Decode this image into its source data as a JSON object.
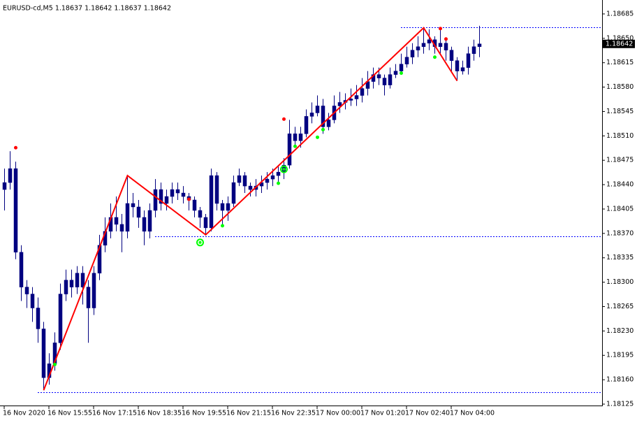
{
  "chart_data": {
    "type": "candlestick",
    "title": "EURUSD-cd,M5  1.18637 1.18642 1.18637 1.18642",
    "color": "#000080",
    "ylim": [
      1.18123,
      1.18705
    ],
    "yticks": [
      1.18125,
      {
        "value": 1.1816,
        "label": "1.18160"
      },
      1.18195,
      {
        "value": 1.1823,
        "label": "1.18230"
      },
      1.18265,
      {
        "value": 1.183,
        "label": "1.18300"
      },
      1.18335,
      {
        "value": 1.1837,
        "label": "1.18370"
      },
      1.18405,
      {
        "value": 1.1844,
        "label": "1.18440"
      },
      1.18475,
      {
        "value": 1.1851,
        "label": "1.18510"
      },
      1.18545,
      {
        "value": 1.1858,
        "label": "1.18580"
      },
      1.18615,
      {
        "value": 1.1865,
        "label": "1.18650"
      },
      1.18685
    ],
    "xticks": [
      {
        "value": 0,
        "label": "16 Nov 2020"
      },
      {
        "value": 8,
        "label": "16 Nov 15:55"
      },
      {
        "value": 16,
        "label": "16 Nov 17:15"
      },
      {
        "value": 24,
        "label": "16 Nov 18:35"
      },
      {
        "value": 32,
        "label": "16 Nov 19:55"
      },
      {
        "value": 40,
        "label": "16 Nov 21:15"
      },
      {
        "value": 48,
        "label": "16 Nov 22:35"
      },
      {
        "value": 56,
        "label": "17 Nov 00:00"
      },
      {
        "value": 64,
        "label": "17 Nov 01:20"
      },
      {
        "value": 72,
        "label": "17 Nov 02:40"
      },
      {
        "value": 80,
        "label": "17 Nov 04:00"
      }
    ],
    "open": [
      1.18433,
      1.18443,
      1.18463,
      1.18343,
      1.18293,
      1.18283,
      1.18263,
      1.18233,
      1.18163,
      1.18183,
      1.18213,
      1.18283,
      1.18303,
      1.18293,
      1.18313,
      1.18293,
      1.18263,
      1.18313,
      1.18353,
      1.18373,
      1.18393,
      1.18383,
      1.18373,
      1.18413,
      1.18408,
      1.18393,
      1.18373,
      1.18403,
      1.18433,
      1.18413,
      1.18423,
      1.18433,
      1.18428,
      1.18423,
      1.18418,
      1.18403,
      1.18393,
      1.18378,
      1.18453,
      1.18413,
      1.18403,
      1.18413,
      1.18443,
      1.18453,
      1.18438,
      1.18433,
      1.18438,
      1.18443,
      1.18448,
      1.18453,
      1.18458,
      1.18468,
      1.18513,
      1.18503,
      1.18513,
      1.18538,
      1.18543,
      1.18553,
      1.18523,
      1.18533,
      1.18553,
      1.18558,
      1.18561,
      1.18563,
      1.18568,
      1.18578,
      1.18588,
      1.18598,
      1.18593,
      1.18583,
      1.18598,
      1.18603,
      1.18613,
      1.18623,
      1.18633,
      1.18638,
      1.18643,
      1.18648,
      1.18638,
      1.18643,
      1.18633,
      1.18618,
      1.18603,
      1.18608,
      1.18628,
      1.18638
    ],
    "high": [
      1.18463,
      1.18488,
      1.18473,
      1.18353,
      1.18303,
      1.18293,
      1.18278,
      1.18243,
      1.18198,
      1.18228,
      1.18298,
      1.18318,
      1.18318,
      1.18323,
      1.18323,
      1.18303,
      1.18323,
      1.18368,
      1.18393,
      1.18413,
      1.18423,
      1.18398,
      1.18453,
      1.18428,
      1.18418,
      1.18403,
      1.18413,
      1.18448,
      1.18443,
      1.18433,
      1.18443,
      1.18443,
      1.18438,
      1.18428,
      1.18423,
      1.18408,
      1.18398,
      1.18463,
      1.18458,
      1.18418,
      1.18423,
      1.18453,
      1.18463,
      1.18458,
      1.18443,
      1.18448,
      1.18453,
      1.18458,
      1.18463,
      1.18468,
      1.18478,
      1.18533,
      1.18523,
      1.18523,
      1.18548,
      1.18558,
      1.18568,
      1.18563,
      1.18543,
      1.18568,
      1.18573,
      1.18571,
      1.18578,
      1.18583,
      1.18593,
      1.18603,
      1.18608,
      1.18608,
      1.18598,
      1.18608,
      1.18613,
      1.18628,
      1.18638,
      1.18643,
      1.18653,
      1.18665,
      1.18663,
      1.18653,
      1.18663,
      1.18648,
      1.18638,
      1.18623,
      1.18618,
      1.18638,
      1.18648,
      1.18668
    ],
    "low": [
      1.18403,
      1.18433,
      1.18333,
      1.18273,
      1.18263,
      1.18243,
      1.18213,
      1.18145,
      1.18153,
      1.18173,
      1.18203,
      1.18273,
      1.18278,
      1.18283,
      1.18268,
      1.18213,
      1.18253,
      1.18303,
      1.18343,
      1.18363,
      1.18373,
      1.18343,
      1.18363,
      1.18393,
      1.18378,
      1.18353,
      1.18363,
      1.18393,
      1.18403,
      1.18403,
      1.18413,
      1.18418,
      1.18413,
      1.18403,
      1.18393,
      1.18378,
      1.18368,
      1.18373,
      1.18403,
      1.18383,
      1.18388,
      1.18408,
      1.18438,
      1.18428,
      1.18423,
      1.18423,
      1.18428,
      1.18433,
      1.18438,
      1.18443,
      1.18448,
      1.18463,
      1.18493,
      1.18493,
      1.18508,
      1.18528,
      1.18538,
      1.18513,
      1.18518,
      1.18528,
      1.18543,
      1.18548,
      1.18553,
      1.18553,
      1.18558,
      1.18568,
      1.18578,
      1.18583,
      1.18568,
      1.18578,
      1.18593,
      1.18598,
      1.18608,
      1.18613,
      1.18623,
      1.18628,
      1.18633,
      1.18628,
      1.18628,
      1.18618,
      1.18603,
      1.18589,
      1.18598,
      1.18598,
      1.18618,
      1.18623
    ],
    "close": [
      1.18443,
      1.18463,
      1.18343,
      1.18293,
      1.18283,
      1.18263,
      1.18233,
      1.18163,
      1.18183,
      1.18213,
      1.18283,
      1.18303,
      1.18293,
      1.18313,
      1.18293,
      1.18263,
      1.18313,
      1.18353,
      1.18373,
      1.18393,
      1.18383,
      1.18373,
      1.18413,
      1.18408,
      1.18393,
      1.18373,
      1.18403,
      1.18433,
      1.18413,
      1.18423,
      1.18433,
      1.18428,
      1.18423,
      1.18418,
      1.18403,
      1.18393,
      1.18378,
      1.18453,
      1.18413,
      1.18403,
      1.18413,
      1.18443,
      1.18453,
      1.18438,
      1.18433,
      1.18438,
      1.18443,
      1.18448,
      1.18453,
      1.18458,
      1.18468,
      1.18513,
      1.18503,
      1.18513,
      1.18538,
      1.18543,
      1.18553,
      1.18523,
      1.18533,
      1.18553,
      1.18558,
      1.18561,
      1.18563,
      1.18568,
      1.18578,
      1.18588,
      1.18598,
      1.18593,
      1.18583,
      1.18598,
      1.18603,
      1.18613,
      1.18623,
      1.18633,
      1.18638,
      1.18643,
      1.18648,
      1.18638,
      1.18643,
      1.18633,
      1.18618,
      1.18603,
      1.18608,
      1.18628,
      1.18638,
      1.18642
    ],
    "zigzag": {
      "color": "#ff0000",
      "x": [
        7,
        22,
        36,
        75,
        81
      ],
      "values": [
        1.18145,
        1.18453,
        1.18368,
        1.18665,
        1.18589
      ]
    },
    "fractal_up": {
      "color": "#ff0000",
      "x": [
        2,
        33,
        50,
        78,
        79
      ],
      "values": [
        1.18493,
        1.18419,
        1.18534,
        1.18664,
        1.18649
      ]
    },
    "fractal_down": {
      "color": "#00ff00",
      "x": [
        9,
        39,
        49,
        52,
        56,
        57,
        71,
        77
      ],
      "values": [
        1.18182,
        1.18381,
        1.18442,
        1.18495,
        1.18508,
        1.18519,
        1.186,
        1.18623
      ]
    },
    "pivots": {
      "color": "#00ff00",
      "x": [
        35,
        50
      ],
      "values": [
        1.18357,
        1.18462
      ]
    },
    "levels": {
      "color": "#0000ff",
      "x": [
        71,
        27,
        6
      ],
      "values": [
        1.18666,
        1.18366,
        1.18142
      ]
    },
    "last_price": 1.18642
  }
}
